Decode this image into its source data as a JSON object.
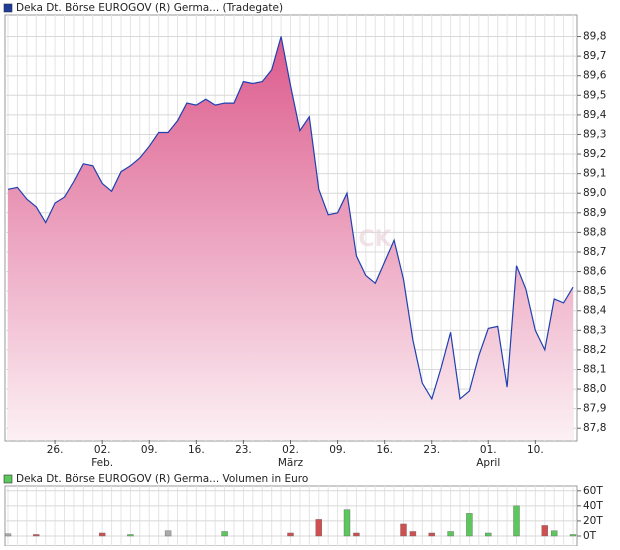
{
  "chart_data": [
    {
      "type": "area",
      "title": "Deka Dt. Börse EUROGOV (R) Germa... (Tradegate)",
      "legend_color": "#1f3c9c",
      "watermark": "CK",
      "series": [
        {
          "name": "Deka Dt. Börse EUROGOV (R) Germa...",
          "color": "#2040b0",
          "values": [
            89.02,
            89.03,
            88.97,
            88.93,
            88.85,
            88.95,
            88.98,
            89.06,
            89.15,
            89.14,
            89.05,
            89.01,
            89.11,
            89.14,
            89.18,
            89.24,
            89.31,
            89.31,
            89.37,
            89.46,
            89.45,
            89.48,
            89.45,
            89.46,
            89.46,
            89.57,
            89.56,
            89.57,
            89.63,
            89.8,
            89.55,
            89.32,
            89.39,
            89.02,
            88.89,
            88.9,
            89.0,
            88.68,
            88.58,
            88.54,
            88.65,
            88.76,
            88.56,
            88.25,
            88.03,
            87.95,
            88.11,
            88.29,
            87.95,
            87.99,
            88.17,
            88.31,
            88.32,
            88.01,
            88.63,
            88.51,
            88.3,
            88.2,
            88.46,
            88.44,
            88.52
          ]
        }
      ],
      "xlim": [
        0,
        60
      ],
      "xticks": [
        {
          "value": 5,
          "label": "26."
        },
        {
          "value": 10,
          "label": "02."
        },
        {
          "value": 15,
          "label": "09."
        },
        {
          "value": 20,
          "label": "16."
        },
        {
          "value": 25,
          "label": "23."
        },
        {
          "value": 30,
          "label": "02."
        },
        {
          "value": 35,
          "label": "09."
        },
        {
          "value": 40,
          "label": "16."
        },
        {
          "value": 45,
          "label": "23."
        },
        {
          "value": 51,
          "label": "01."
        },
        {
          "value": 56,
          "label": "10."
        }
      ],
      "month_labels": [
        {
          "value": 10,
          "label": "Feb."
        },
        {
          "value": 30,
          "label": "März"
        },
        {
          "value": 51,
          "label": "April"
        }
      ],
      "ylim": [
        87.74,
        89.91
      ],
      "yticks": [
        {
          "value": 87.8,
          "label": "87,8"
        },
        {
          "value": 87.9,
          "label": "87,9"
        },
        {
          "value": 88.0,
          "label": "88,0"
        },
        {
          "value": 88.1,
          "label": "88,1"
        },
        {
          "value": 88.2,
          "label": "88,2"
        },
        {
          "value": 88.3,
          "label": "88,3"
        },
        {
          "value": 88.4,
          "label": "88,4"
        },
        {
          "value": 88.5,
          "label": "88,5"
        },
        {
          "value": 88.6,
          "label": "88,6"
        },
        {
          "value": 88.7,
          "label": "88,7"
        },
        {
          "value": 88.8,
          "label": "88,8"
        },
        {
          "value": 88.9,
          "label": "88,9"
        },
        {
          "value": 89.0,
          "label": "89,0"
        },
        {
          "value": 89.1,
          "label": "89,1"
        },
        {
          "value": 89.2,
          "label": "89,2"
        },
        {
          "value": 89.3,
          "label": "89,3"
        },
        {
          "value": 89.4,
          "label": "89,4"
        },
        {
          "value": 89.5,
          "label": "89,5"
        },
        {
          "value": 89.6,
          "label": "89,6"
        },
        {
          "value": 89.7,
          "label": "89,7"
        },
        {
          "value": 89.8,
          "label": "89,8"
        }
      ],
      "grid": true
    },
    {
      "type": "bar",
      "title": "Deka Dt. Börse EUROGOV (R) Germa... Volumen in Euro",
      "legend_color": "#5cc85c",
      "up_color": "#5cc85c",
      "down_color": "#d05050",
      "flat_color": "#aaaaaa",
      "values": [
        3,
        0,
        0,
        2,
        0,
        0,
        0,
        0,
        0,
        0,
        4,
        0,
        0,
        2,
        0,
        0,
        0,
        7,
        0,
        0,
        0,
        0,
        0,
        6,
        0,
        0,
        0,
        0,
        0,
        0,
        4,
        0,
        0,
        22,
        0,
        0,
        35,
        4,
        0,
        0,
        0,
        0,
        16,
        6,
        0,
        4,
        0,
        6,
        0,
        30,
        0,
        4,
        0,
        0,
        40,
        0,
        0,
        14,
        7,
        0,
        2
      ],
      "ylim": [
        0,
        65
      ],
      "yticks": [
        {
          "value": 0,
          "label": "0T"
        },
        {
          "value": 20,
          "label": "20T"
        },
        {
          "value": 40,
          "label": "40T"
        },
        {
          "value": 60,
          "label": "60T"
        }
      ],
      "grid": true
    }
  ]
}
